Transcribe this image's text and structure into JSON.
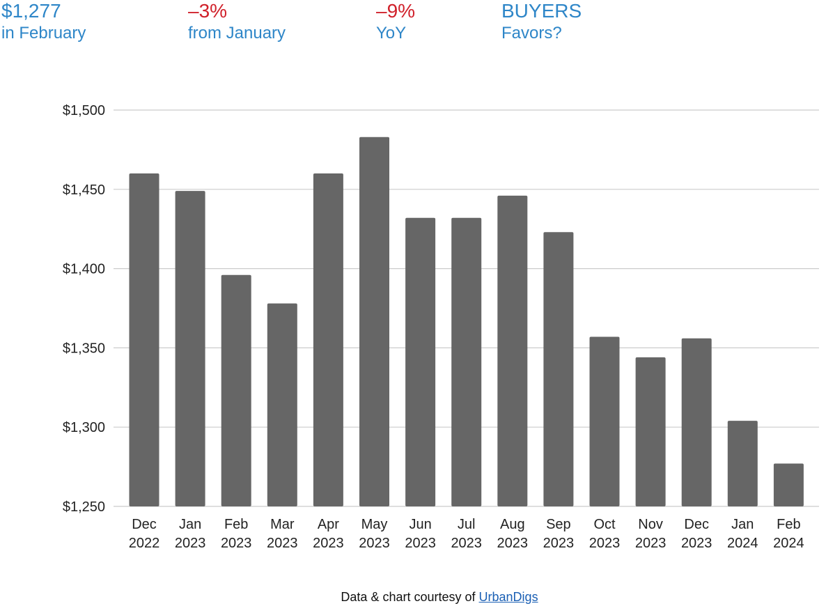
{
  "header": {
    "stats": [
      {
        "value": "$1,277",
        "label": "in February",
        "value_color": "#2e86c8",
        "label_color": "#2e86c8"
      },
      {
        "value": "–3%",
        "label": "from January",
        "value_color": "#d0202a",
        "label_color": "#2e86c8"
      },
      {
        "value": "–9%",
        "label": "YoY",
        "value_color": "#d0202a",
        "label_color": "#2e86c8"
      },
      {
        "value": "BUYERS",
        "label": "Favors?",
        "value_color": "#2e86c8",
        "label_color": "#2e86c8"
      }
    ]
  },
  "chart_data": {
    "type": "bar",
    "title": "",
    "xlabel": "",
    "ylabel": "",
    "categories": [
      [
        "Dec",
        "2022"
      ],
      [
        "Jan",
        "2023"
      ],
      [
        "Feb",
        "2023"
      ],
      [
        "Mar",
        "2023"
      ],
      [
        "Apr",
        "2023"
      ],
      [
        "May",
        "2023"
      ],
      [
        "Jun",
        "2023"
      ],
      [
        "Jul",
        "2023"
      ],
      [
        "Aug",
        "2023"
      ],
      [
        "Sep",
        "2023"
      ],
      [
        "Oct",
        "2023"
      ],
      [
        "Nov",
        "2023"
      ],
      [
        "Dec",
        "2023"
      ],
      [
        "Jan",
        "2024"
      ],
      [
        "Feb",
        "2024"
      ]
    ],
    "values": [
      1460,
      1449,
      1396,
      1378,
      1460,
      1483,
      1432,
      1432,
      1446,
      1423,
      1357,
      1344,
      1356,
      1304,
      1277
    ],
    "ylim": [
      1250,
      1500
    ],
    "yticks": [
      1250,
      1300,
      1350,
      1400,
      1450,
      1500
    ],
    "ytick_labels": [
      "$1,250",
      "$1,300",
      "$1,350",
      "$1,400",
      "$1,450",
      "$1,500"
    ],
    "grid": true,
    "bar_color": "#666666",
    "grid_color": "#cccccc"
  },
  "footer": {
    "text": "Data & chart courtesy of",
    "link_text": "UrbanDigs",
    "link_color": "#1a5fb4"
  }
}
